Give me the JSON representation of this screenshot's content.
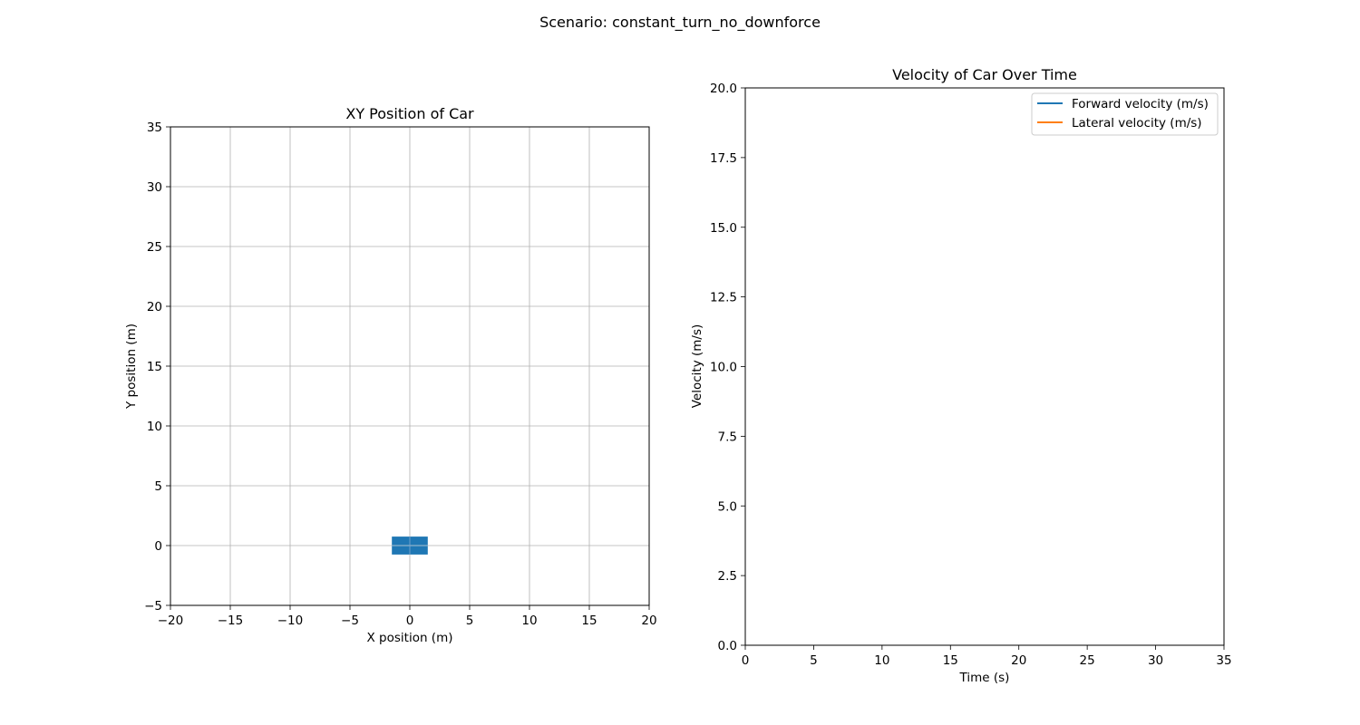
{
  "figure": {
    "suptitle": "Scenario: constant_turn_no_downforce"
  },
  "chart_data": [
    {
      "type": "scatter",
      "title": "XY Position of Car",
      "xlabel": "X position (m)",
      "ylabel": "Y position (m)",
      "xlim": [
        -20,
        20
      ],
      "ylim": [
        -5,
        35
      ],
      "xticks": [
        "−20",
        "−15",
        "−10",
        "−5",
        "0",
        "5",
        "10",
        "15",
        "20"
      ],
      "yticks": [
        "−5",
        "0",
        "5",
        "10",
        "15",
        "20",
        "25",
        "30",
        "35"
      ],
      "grid": true,
      "car": {
        "x_center": 0,
        "y_center": 0,
        "length": 3,
        "width": 1.5,
        "color": "#1f77b4"
      }
    },
    {
      "type": "line",
      "title": "Velocity of Car Over Time",
      "xlabel": "Time (s)",
      "ylabel": "Velocity (m/s)",
      "xlim": [
        0,
        35
      ],
      "ylim": [
        0,
        20
      ],
      "xticks": [
        "0",
        "5",
        "10",
        "15",
        "20",
        "25",
        "30",
        "35"
      ],
      "yticks": [
        "0.0",
        "2.5",
        "5.0",
        "7.5",
        "10.0",
        "12.5",
        "15.0",
        "17.5",
        "20.0"
      ],
      "grid": false,
      "legend_position": "upper right",
      "series": [
        {
          "name": "Forward velocity (m/s)",
          "color": "#1f77b4",
          "values": []
        },
        {
          "name": "Lateral velocity (m/s)",
          "color": "#ff7f0e",
          "values": []
        }
      ]
    }
  ]
}
